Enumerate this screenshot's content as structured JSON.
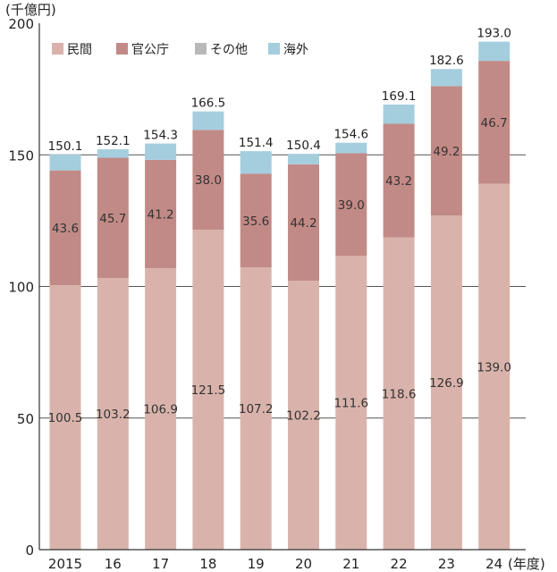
{
  "chart_data": {
    "type": "bar",
    "stacked": true,
    "y_unit_label": "(千億円)",
    "x_unit_label": "(年度)",
    "categories": [
      "2015",
      "16",
      "17",
      "18",
      "19",
      "20",
      "21",
      "22",
      "23",
      "24"
    ],
    "series": [
      {
        "name": "民間",
        "color": "#d9b3ab",
        "values": [
          100.5,
          103.2,
          106.9,
          121.5,
          107.2,
          102.2,
          111.6,
          118.6,
          126.9,
          139.0
        ]
      },
      {
        "name": "官公庁",
        "color": "#c28a86",
        "values": [
          43.6,
          45.7,
          41.2,
          38.0,
          35.6,
          44.2,
          39.0,
          43.2,
          49.2,
          46.7
        ]
      },
      {
        "name": "その他",
        "color": "#b8b8b8",
        "values": [
          0,
          0,
          0,
          0,
          0,
          0,
          0,
          0,
          0,
          0
        ]
      },
      {
        "name": "海外",
        "color": "#a4cede",
        "values": [
          6.0,
          3.2,
          6.2,
          7.0,
          8.6,
          4.0,
          4.0,
          7.3,
          6.5,
          7.3
        ]
      }
    ],
    "totals": [
      150.1,
      152.1,
      154.3,
      166.5,
      151.4,
      150.4,
      154.6,
      169.1,
      182.6,
      193.0
    ],
    "segment_labels": [
      [
        "100.5",
        "103.2",
        "106.9",
        "121.5",
        "107.2",
        "102.2",
        "111.6",
        "118.6",
        "126.9",
        "139.0"
      ],
      [
        "43.6",
        "45.7",
        "41.2",
        "38.0",
        "35.6",
        "44.2",
        "39.0",
        "43.2",
        "49.2",
        "46.7"
      ]
    ],
    "total_labels": [
      "150.1",
      "152.1",
      "154.3",
      "166.5",
      "151.4",
      "150.4",
      "154.6",
      "169.1",
      "182.6",
      "193.0"
    ],
    "y_ticks": [
      0,
      50,
      100,
      150,
      200
    ],
    "y_tick_labels": [
      "0",
      "50",
      "100",
      "150",
      "200"
    ],
    "ylim": [
      0,
      200
    ],
    "grid": true,
    "legend_position": "top-left"
  }
}
